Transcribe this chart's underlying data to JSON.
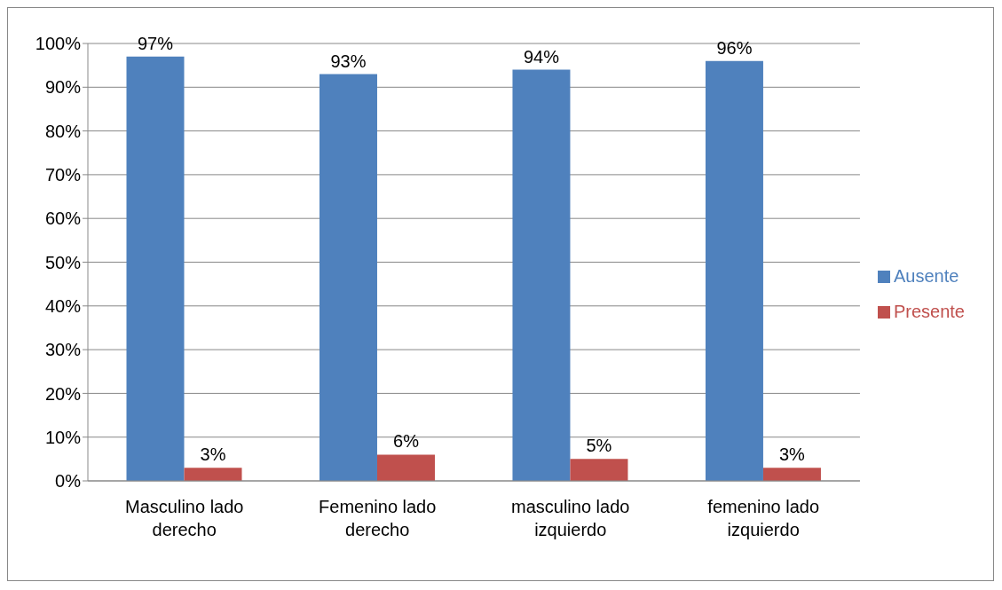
{
  "chart_data": {
    "type": "bar",
    "categories": [
      "Masculino lado derecho",
      "Femenino lado derecho",
      "masculino lado izquierdo",
      "femenino lado izquierdo"
    ],
    "series": [
      {
        "name": "Ausente",
        "color": "#4f81bd",
        "values": [
          97,
          93,
          94,
          96
        ],
        "value_labels": [
          "97%",
          "93%",
          "94%",
          "96%"
        ]
      },
      {
        "name": "Presente",
        "color": "#c0504d",
        "values": [
          3,
          6,
          5,
          3
        ],
        "value_labels": [
          "3%",
          "6%",
          "5%",
          "3%"
        ]
      }
    ],
    "ylim": [
      0,
      100
    ],
    "yticks": [
      {
        "value": 0,
        "label": "0%"
      },
      {
        "value": 10,
        "label": "10%"
      },
      {
        "value": 20,
        "label": "20%"
      },
      {
        "value": 30,
        "label": "30%"
      },
      {
        "value": 40,
        "label": "40%"
      },
      {
        "value": 50,
        "label": "50%"
      },
      {
        "value": 60,
        "label": "60%"
      },
      {
        "value": 70,
        "label": "70%"
      },
      {
        "value": 80,
        "label": "80%"
      },
      {
        "value": 90,
        "label": "90%"
      },
      {
        "value": 100,
        "label": "100%"
      }
    ],
    "grid": "y",
    "legend": "right"
  }
}
